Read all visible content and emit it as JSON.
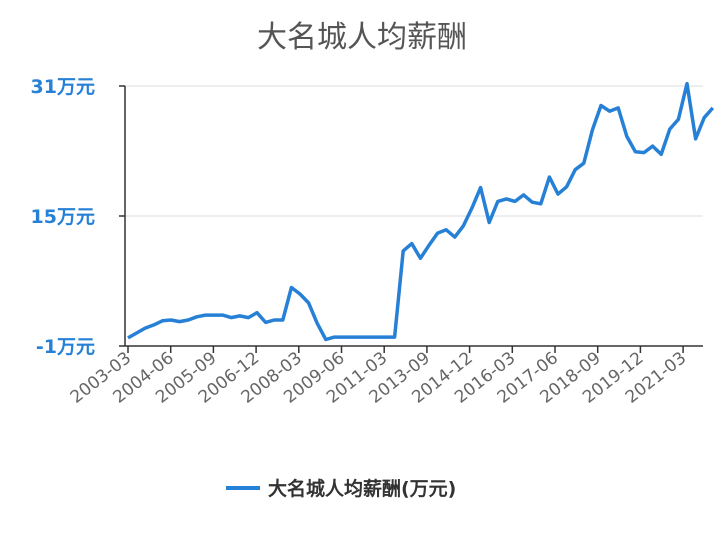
{
  "chart_data": {
    "type": "line",
    "title": "大名城人均薪酬",
    "xlabel": "",
    "ylabel": "",
    "ylim": [
      -1,
      31
    ],
    "y_ticks": [
      {
        "value": 31,
        "label": "31万元"
      },
      {
        "value": 15,
        "label": "15万元"
      },
      {
        "value": -1,
        "label": "-1万元"
      }
    ],
    "x_ticks": [
      "2003-03",
      "2004-06",
      "2005-09",
      "2006-12",
      "2008-03",
      "2009-06",
      "2011-03",
      "2013-09",
      "2014-12",
      "2016-03",
      "2017-06",
      "2018-09",
      "2019-12",
      "2021-03"
    ],
    "grid": true,
    "legend_position": "bottom-center",
    "color": "#2680d6",
    "series": [
      {
        "name": "大名城人均薪酬(万元)",
        "values": [
          0.0,
          0.6,
          1.2,
          1.6,
          2.1,
          2.2,
          2.0,
          2.2,
          2.6,
          2.8,
          2.8,
          2.8,
          2.5,
          2.7,
          2.5,
          3.1,
          1.9,
          2.2,
          2.2,
          6.2,
          5.4,
          4.3,
          1.8,
          -0.2,
          0.1,
          0.1,
          0.1,
          0.1,
          0.1,
          0.1,
          0.1,
          0.1,
          10.7,
          11.6,
          9.8,
          11.4,
          12.9,
          13.3,
          12.4,
          13.8,
          16.0,
          18.5,
          14.2,
          16.8,
          17.1,
          16.8,
          17.6,
          16.7,
          16.5,
          19.8,
          17.7,
          18.6,
          20.7,
          21.5,
          25.6,
          28.6,
          27.9,
          28.3,
          24.8,
          22.9,
          22.8,
          23.6,
          22.6,
          25.7,
          26.9,
          31.3,
          24.5,
          27.1,
          28.3
        ]
      }
    ]
  }
}
